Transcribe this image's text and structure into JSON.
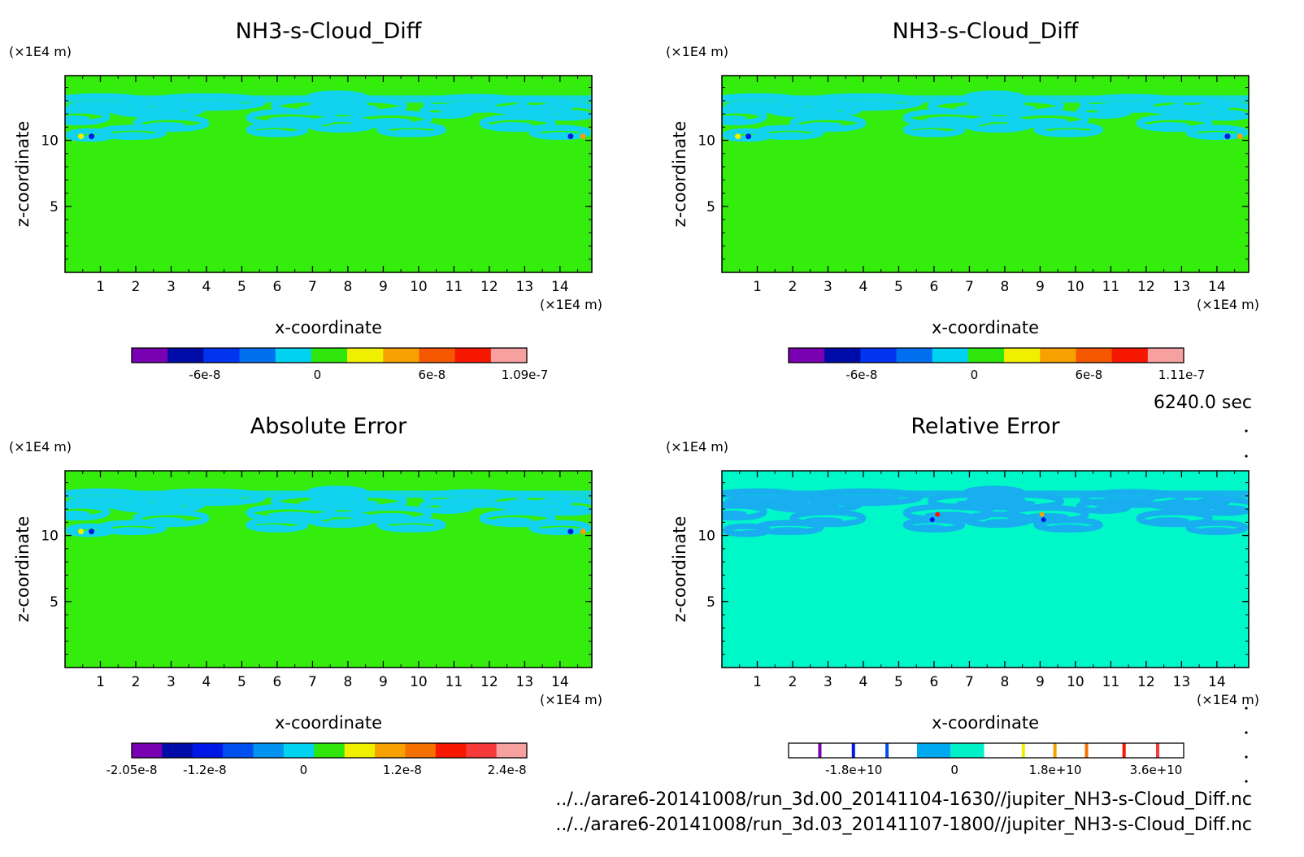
{
  "timestamp": "6240.0 sec",
  "files": [
    "../../arare6-20141008/run_3d.00_20141104-1630//jupiter_NH3-s-Cloud_Diff.nc",
    "../../arare6-20141008/run_3d.03_20141107-1800//jupiter_NH3-s-Cloud_Diff.nc"
  ],
  "chart_data": [
    {
      "type": "heatmap",
      "title": "NH3-s-Cloud_Diff",
      "xlabel": "x-coordinate",
      "ylabel": "z-coordinate",
      "x_unit": "(×1E4 m)",
      "y_unit": "(×1E4 m)",
      "x_ticks": [
        "1",
        "2",
        "3",
        "4",
        "5",
        "6",
        "7",
        "8",
        "9",
        "10",
        "11",
        "12",
        "13",
        "14"
      ],
      "y_ticks": [
        "5",
        "10"
      ],
      "colorbar": {
        "colors": [
          "#7a00b4",
          "#000ca8",
          "#0034ee",
          "#0070f0",
          "#00d2f0",
          "#2ee60c",
          "#f0ef00",
          "#f6a100",
          "#f65800",
          "#f61800",
          "#f7a0a0"
        ],
        "labels": [
          "-6e-8",
          "0",
          "6e-8",
          "1.09e-7"
        ]
      },
      "background": "#35ed0c",
      "cloud_color": "#12d3ef"
    },
    {
      "type": "heatmap",
      "title": "NH3-s-Cloud_Diff",
      "xlabel": "x-coordinate",
      "ylabel": "z-coordinate",
      "x_unit": "(×1E4 m)",
      "y_unit": "(×1E4 m)",
      "x_ticks": [
        "1",
        "2",
        "3",
        "4",
        "5",
        "6",
        "7",
        "8",
        "9",
        "10",
        "11",
        "12",
        "13",
        "14"
      ],
      "y_ticks": [
        "5",
        "10"
      ],
      "colorbar": {
        "colors": [
          "#7a00b4",
          "#000ca8",
          "#0034ee",
          "#0070f0",
          "#00d2f0",
          "#2ee60c",
          "#f0ef00",
          "#f6a100",
          "#f65800",
          "#f61800",
          "#f7a0a0"
        ],
        "labels": [
          "-6e-8",
          "0",
          "6e-8",
          "1.11e-7"
        ]
      },
      "background": "#35ed0c",
      "cloud_color": "#12d3ef"
    },
    {
      "type": "heatmap",
      "title": "Absolute Error",
      "xlabel": "x-coordinate",
      "ylabel": "z-coordinate",
      "x_unit": "(×1E4 m)",
      "y_unit": "(×1E4 m)",
      "x_ticks": [
        "1",
        "2",
        "3",
        "4",
        "5",
        "6",
        "7",
        "8",
        "9",
        "10",
        "11",
        "12",
        "13",
        "14"
      ],
      "y_ticks": [
        "5",
        "10"
      ],
      "colorbar": {
        "colors": [
          "#7a00b4",
          "#000ca8",
          "#0018e6",
          "#0050f0",
          "#0094f0",
          "#00d2f0",
          "#2ee60c",
          "#f0ef00",
          "#f6a100",
          "#f67000",
          "#f61800",
          "#f63a3a",
          "#f7a0a0"
        ],
        "labels": [
          "-2.05e-8",
          "-1.2e-8",
          "0",
          "1.2e-8",
          "2.4e-8"
        ]
      },
      "background": "#35ed0c",
      "cloud_color": "#12d3ef"
    },
    {
      "type": "heatmap",
      "title": "Relative Error",
      "xlabel": "x-coordinate",
      "ylabel": "z-coordinate",
      "x_unit": "(×1E4 m)",
      "y_unit": "(×1E4 m)",
      "x_ticks": [
        "1",
        "2",
        "3",
        "4",
        "5",
        "6",
        "7",
        "8",
        "9",
        "10",
        "11",
        "12",
        "13",
        "14"
      ],
      "y_ticks": [
        "5",
        "10"
      ],
      "colorbar": {
        "segments": [
          "#ffffff",
          "#7a00b4",
          "#ffffff",
          "#0018e6",
          "#ffffff",
          "#0050f0",
          "#00a8f0",
          "#00f0c8",
          "#ffffff",
          "#f0ef00",
          "#ffffff",
          "#f6a100",
          "#ffffff",
          "#f67000",
          "#ffffff",
          "#f61800",
          "#ffffff",
          "#f63a3a",
          "#ffffff"
        ],
        "labels": [
          "-1.8e+10",
          "0",
          "1.8e+10",
          "3.6e+10"
        ]
      },
      "background": "#00f7c8",
      "cloud_color": "#18aef0"
    }
  ]
}
